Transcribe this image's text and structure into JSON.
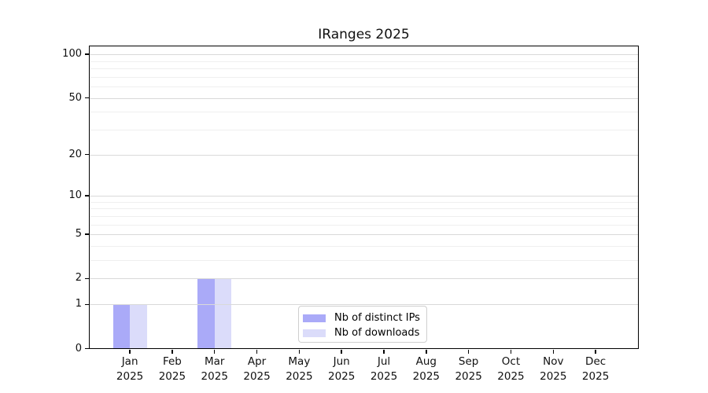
{
  "figure": {
    "background": "#ffffff",
    "axis_color": "#000000"
  },
  "chart_data": {
    "type": "bar",
    "title": "IRanges 2025",
    "xlabel": "",
    "ylabel": "",
    "categories": [
      "Jan 2025",
      "Feb 2025",
      "Mar 2025",
      "Apr 2025",
      "May 2025",
      "Jun 2025",
      "Jul 2025",
      "Aug 2025",
      "Sep 2025",
      "Oct 2025",
      "Nov 2025",
      "Dec 2025"
    ],
    "series": [
      {
        "name": "Nb of distinct IPs",
        "color": "#aaaaf8",
        "values": [
          1,
          0,
          2,
          0,
          0,
          0,
          0,
          0,
          0,
          0,
          0,
          0
        ]
      },
      {
        "name": "Nb of downloads",
        "color": "#dbdcfa",
        "values": [
          1,
          0,
          2,
          0,
          0,
          0,
          0,
          0,
          0,
          0,
          0,
          0
        ]
      }
    ],
    "y_axis": {
      "scale": "log1p",
      "ticks": [
        0,
        1,
        2,
        5,
        10,
        20,
        50,
        100
      ],
      "minor_gridlines": [
        3,
        4,
        6,
        7,
        8,
        9,
        30,
        40,
        60,
        70,
        80,
        90
      ],
      "ylim": [
        0,
        115
      ]
    },
    "grid": {
      "on": true,
      "major_color": "#d9d9d9",
      "minor_color": "#efefef"
    },
    "legend": {
      "position": "inside-bottom-center",
      "entries": [
        "Nb of distinct IPs",
        "Nb of downloads"
      ]
    }
  }
}
